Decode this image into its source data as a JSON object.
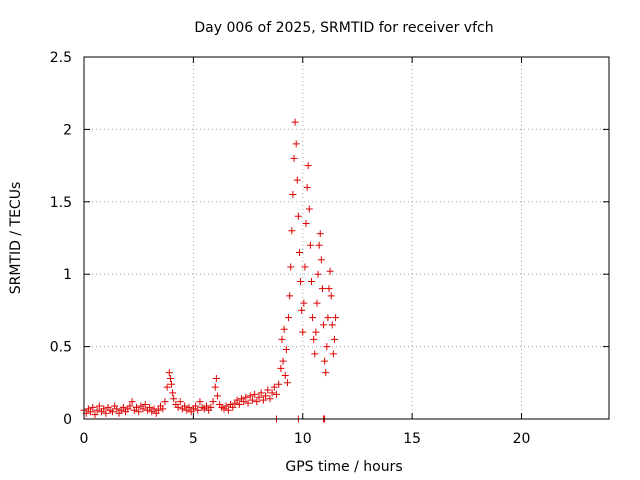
{
  "chart_data": {
    "type": "scatter",
    "title": "Day 006 of 2025, SRMTID for receiver vfch",
    "xlabel": "GPS time / hours",
    "ylabel": "SRMTID / TECUs",
    "xlim": [
      0,
      24
    ],
    "ylim": [
      0,
      2.5
    ],
    "xticks": [
      0,
      5,
      10,
      15,
      20
    ],
    "yticks": [
      0,
      0.5,
      1,
      1.5,
      2,
      2.5
    ],
    "xtick_labels": [
      "0",
      "5",
      "10",
      "15",
      "20"
    ],
    "ytick_labels": [
      "0",
      "0.5",
      "1",
      "1.5",
      "2",
      "2.5"
    ],
    "grid": true,
    "marker": "plus",
    "color": "#dd0000",
    "series": [
      {
        "name": "SRMTID",
        "points": [
          [
            0.0,
            0.06
          ],
          [
            0.1,
            0.04
          ],
          [
            0.2,
            0.07
          ],
          [
            0.3,
            0.05
          ],
          [
            0.4,
            0.08
          ],
          [
            0.5,
            0.03
          ],
          [
            0.6,
            0.06
          ],
          [
            0.7,
            0.09
          ],
          [
            0.8,
            0.05
          ],
          [
            0.9,
            0.07
          ],
          [
            1.0,
            0.04
          ],
          [
            1.1,
            0.08
          ],
          [
            1.2,
            0.06
          ],
          [
            1.3,
            0.05
          ],
          [
            1.4,
            0.09
          ],
          [
            1.5,
            0.07
          ],
          [
            1.6,
            0.04
          ],
          [
            1.7,
            0.06
          ],
          [
            1.8,
            0.08
          ],
          [
            1.9,
            0.05
          ],
          [
            2.0,
            0.07
          ],
          [
            2.1,
            0.09
          ],
          [
            2.2,
            0.12
          ],
          [
            2.3,
            0.06
          ],
          [
            2.4,
            0.08
          ],
          [
            2.5,
            0.05
          ],
          [
            2.6,
            0.09
          ],
          [
            2.7,
            0.07
          ],
          [
            2.8,
            0.1
          ],
          [
            2.9,
            0.06
          ],
          [
            3.0,
            0.08
          ],
          [
            3.1,
            0.05
          ],
          [
            3.2,
            0.07
          ],
          [
            3.3,
            0.04
          ],
          [
            3.4,
            0.06
          ],
          [
            3.5,
            0.09
          ],
          [
            3.6,
            0.07
          ],
          [
            3.7,
            0.12
          ],
          [
            3.8,
            0.22
          ],
          [
            3.9,
            0.32
          ],
          [
            3.95,
            0.28
          ],
          [
            4.0,
            0.24
          ],
          [
            4.05,
            0.18
          ],
          [
            4.1,
            0.14
          ],
          [
            4.2,
            0.1
          ],
          [
            4.3,
            0.08
          ],
          [
            4.4,
            0.12
          ],
          [
            4.5,
            0.07
          ],
          [
            4.6,
            0.09
          ],
          [
            4.7,
            0.06
          ],
          [
            4.8,
            0.08
          ],
          [
            4.9,
            0.05
          ],
          [
            5.0,
            0.07
          ],
          [
            5.1,
            0.09
          ],
          [
            5.2,
            0.06
          ],
          [
            5.3,
            0.12
          ],
          [
            5.4,
            0.08
          ],
          [
            5.5,
            0.07
          ],
          [
            5.6,
            0.09
          ],
          [
            5.7,
            0.06
          ],
          [
            5.8,
            0.08
          ],
          [
            5.9,
            0.12
          ],
          [
            6.0,
            0.22
          ],
          [
            6.05,
            0.28
          ],
          [
            6.1,
            0.16
          ],
          [
            6.2,
            0.1
          ],
          [
            6.3,
            0.08
          ],
          [
            6.4,
            0.07
          ],
          [
            6.5,
            0.09
          ],
          [
            6.6,
            0.06
          ],
          [
            6.7,
            0.1
          ],
          [
            6.8,
            0.08
          ],
          [
            6.9,
            0.11
          ],
          [
            7.0,
            0.13
          ],
          [
            7.1,
            0.1
          ],
          [
            7.2,
            0.14
          ],
          [
            7.3,
            0.12
          ],
          [
            7.4,
            0.15
          ],
          [
            7.5,
            0.11
          ],
          [
            7.6,
            0.16
          ],
          [
            7.7,
            0.13
          ],
          [
            7.8,
            0.17
          ],
          [
            7.9,
            0.12
          ],
          [
            8.0,
            0.15
          ],
          [
            8.1,
            0.18
          ],
          [
            8.2,
            0.13
          ],
          [
            8.3,
            0.16
          ],
          [
            8.4,
            0.2
          ],
          [
            8.5,
            0.14
          ],
          [
            8.6,
            0.18
          ],
          [
            8.7,
            0.22
          ],
          [
            8.8,
            0.17
          ],
          [
            8.9,
            0.24
          ],
          [
            9.0,
            0.35
          ],
          [
            9.05,
            0.55
          ],
          [
            9.1,
            0.4
          ],
          [
            9.15,
            0.62
          ],
          [
            9.2,
            0.3
          ],
          [
            9.25,
            0.48
          ],
          [
            9.3,
            0.25
          ],
          [
            9.35,
            0.7
          ],
          [
            9.4,
            0.85
          ],
          [
            9.45,
            1.05
          ],
          [
            9.5,
            1.3
          ],
          [
            9.55,
            1.55
          ],
          [
            9.6,
            1.8
          ],
          [
            9.65,
            2.05
          ],
          [
            9.7,
            1.9
          ],
          [
            9.75,
            1.65
          ],
          [
            9.8,
            1.4
          ],
          [
            9.85,
            1.15
          ],
          [
            9.9,
            0.95
          ],
          [
            9.95,
            0.75
          ],
          [
            10.0,
            0.6
          ],
          [
            10.05,
            0.8
          ],
          [
            10.1,
            1.05
          ],
          [
            10.15,
            1.35
          ],
          [
            10.2,
            1.6
          ],
          [
            10.25,
            1.75
          ],
          [
            10.3,
            1.45
          ],
          [
            10.35,
            1.2
          ],
          [
            10.4,
            0.95
          ],
          [
            10.45,
            0.7
          ],
          [
            10.5,
            0.55
          ],
          [
            10.55,
            0.45
          ],
          [
            10.6,
            0.6
          ],
          [
            10.65,
            0.8
          ],
          [
            10.7,
            1.0
          ],
          [
            10.75,
            1.2
          ],
          [
            10.8,
            1.28
          ],
          [
            10.85,
            1.1
          ],
          [
            10.9,
            0.9
          ],
          [
            10.95,
            0.65
          ],
          [
            11.0,
            0.4
          ],
          [
            11.05,
            0.32
          ],
          [
            11.1,
            0.5
          ],
          [
            11.15,
            0.7
          ],
          [
            11.2,
            0.9
          ],
          [
            11.25,
            1.02
          ],
          [
            11.3,
            0.85
          ],
          [
            11.35,
            0.65
          ],
          [
            11.4,
            0.45
          ],
          [
            11.45,
            0.55
          ],
          [
            11.5,
            0.7
          ],
          [
            8.8,
            0.0
          ],
          [
            9.8,
            0.0
          ],
          [
            10.95,
            0.0
          ],
          [
            11.0,
            0.0
          ]
        ]
      }
    ]
  }
}
